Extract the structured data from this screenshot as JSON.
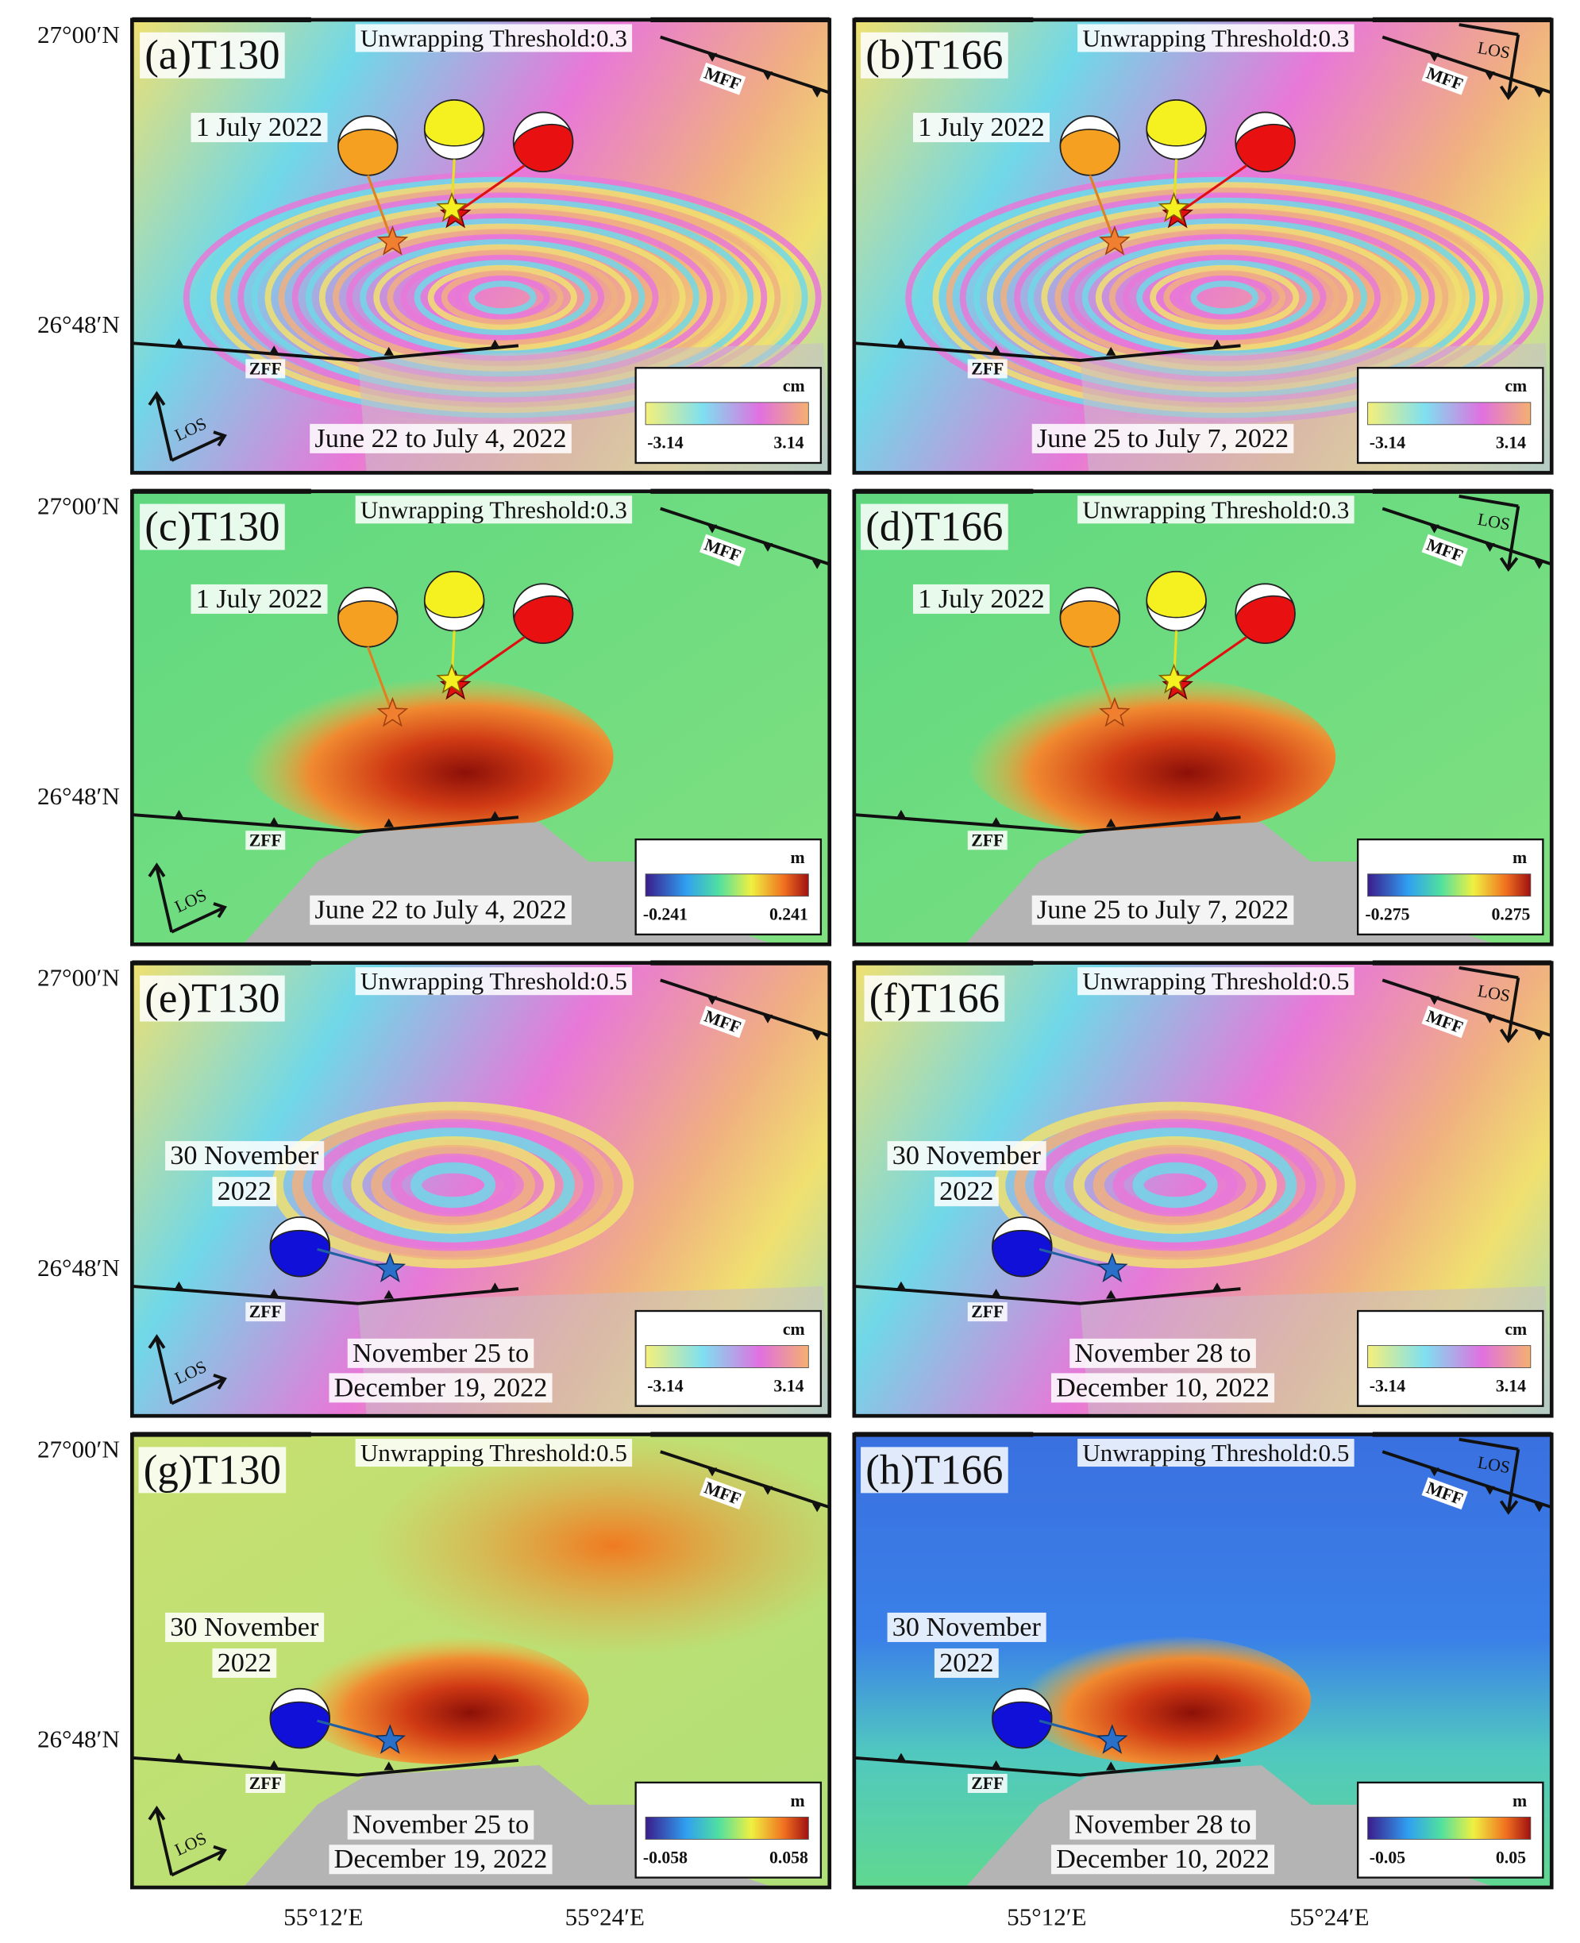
{
  "axes": {
    "lat": [
      "27°00′N",
      "26°48′N"
    ],
    "lon": [
      "55°12′E",
      "55°24′E"
    ]
  },
  "faults": {
    "mff": "MFF",
    "zff": "ZFF"
  },
  "los": "LOS",
  "panels": [
    {
      "label": "(a)T130",
      "threshold": "Unwrapping Threshold:0.3",
      "event": [
        "1 July 2022"
      ],
      "dates": [
        "June 22 to July 4, 2022"
      ],
      "unit": "cm",
      "cmin": -3.14,
      "cmax": 3.14
    },
    {
      "label": "(b)T166",
      "threshold": "Unwrapping Threshold:0.3",
      "event": [
        "1 July 2022"
      ],
      "dates": [
        "June 25 to July 7, 2022"
      ],
      "unit": "cm",
      "cmin": -3.14,
      "cmax": 3.14
    },
    {
      "label": "(c)T130",
      "threshold": "Unwrapping Threshold:0.3",
      "event": [
        "1 July 2022"
      ],
      "dates": [
        "June 22 to July 4, 2022"
      ],
      "unit": "m",
      "cmin": -0.241,
      "cmax": 0.241
    },
    {
      "label": "(d)T166",
      "threshold": "Unwrapping Threshold:0.3",
      "event": [
        "1 July 2022"
      ],
      "dates": [
        "June 25 to July 7, 2022"
      ],
      "unit": "m",
      "cmin": -0.275,
      "cmax": 0.275
    },
    {
      "label": "(e)T130",
      "threshold": "Unwrapping Threshold:0.5",
      "event": [
        "30 November",
        "2022"
      ],
      "dates": [
        "November 25 to",
        "December 19, 2022"
      ],
      "unit": "cm",
      "cmin": -3.14,
      "cmax": 3.14
    },
    {
      "label": "(f)T166",
      "threshold": "Unwrapping Threshold:0.5",
      "event": [
        "30 November",
        "2022"
      ],
      "dates": [
        "November 28 to",
        "December 10, 2022"
      ],
      "unit": "cm",
      "cmin": -3.14,
      "cmax": 3.14
    },
    {
      "label": "(g)T130",
      "threshold": "Unwrapping Threshold:0.5",
      "event": [
        "30 November",
        "2022"
      ],
      "dates": [
        "November 25 to",
        "December 19, 2022"
      ],
      "unit": "m",
      "cmin": -0.058,
      "cmax": 0.058
    },
    {
      "label": "(h)T166",
      "threshold": "Unwrapping Threshold:0.5",
      "event": [
        "30 November",
        "2022"
      ],
      "dates": [
        "November 28 to",
        "December 10, 2022"
      ],
      "unit": "m",
      "cmin": -0.05,
      "cmax": 0.05
    }
  ]
}
